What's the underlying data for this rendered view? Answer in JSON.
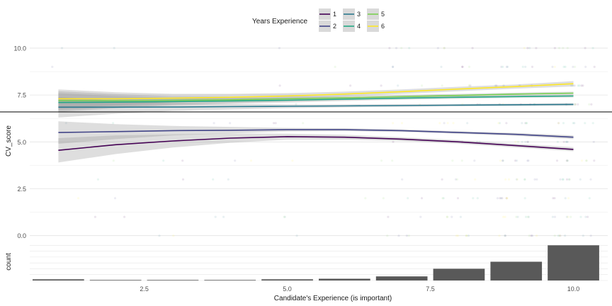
{
  "chart_data": [
    {
      "type": "line",
      "subtype": "scatter-with-smooth-lines",
      "xlabel": "",
      "ylabel": "CV_score",
      "xlim": [
        0.5,
        10.6
      ],
      "ylim": [
        -0.2,
        10.3
      ],
      "y_ticks": [
        0.0,
        2.5,
        5.0,
        7.5,
        10.0
      ],
      "y_tick_labels": [
        "0.0",
        "2.5",
        "5.0",
        "7.5",
        "10.0"
      ],
      "grid": true,
      "legend": {
        "title": "Years Experience",
        "placement": "top",
        "entries": [
          "1",
          "2",
          "3",
          "4",
          "5",
          "6"
        ]
      },
      "reference_line_y": 6.6,
      "series": [
        {
          "name": "1",
          "color": "#440154",
          "x": [
            1,
            2,
            3,
            4,
            5,
            6,
            7,
            8,
            9,
            10
          ],
          "y": [
            4.55,
            4.85,
            5.05,
            5.2,
            5.28,
            5.25,
            5.15,
            5.0,
            4.8,
            4.6
          ],
          "band": [
            [
              3.9,
              5.2
            ],
            [
              4.35,
              5.35
            ],
            [
              4.7,
              5.4
            ],
            [
              4.95,
              5.45
            ],
            [
              5.12,
              5.44
            ],
            [
              5.12,
              5.38
            ],
            [
              5.05,
              5.25
            ],
            [
              4.9,
              5.1
            ],
            [
              4.7,
              4.9
            ],
            [
              4.5,
              4.72
            ]
          ]
        },
        {
          "name": "2",
          "color": "#414487",
          "x": [
            1,
            2,
            3,
            4,
            5,
            6,
            7,
            8,
            9,
            10
          ],
          "y": [
            5.5,
            5.55,
            5.6,
            5.62,
            5.65,
            5.65,
            5.6,
            5.5,
            5.4,
            5.25
          ],
          "band": [
            [
              4.9,
              6.1
            ],
            [
              5.15,
              5.95
            ],
            [
              5.35,
              5.85
            ],
            [
              5.45,
              5.8
            ],
            [
              5.55,
              5.75
            ],
            [
              5.57,
              5.73
            ],
            [
              5.53,
              5.67
            ],
            [
              5.43,
              5.57
            ],
            [
              5.32,
              5.48
            ],
            [
              5.15,
              5.35
            ]
          ]
        },
        {
          "name": "3",
          "color": "#2A788E",
          "x": [
            1,
            2,
            3,
            4,
            5,
            6,
            7,
            8,
            9,
            10
          ],
          "y": [
            6.85,
            6.85,
            6.86,
            6.88,
            6.9,
            6.92,
            6.94,
            6.96,
            6.98,
            7.0
          ],
          "band": [
            [
              6.3,
              7.4
            ],
            [
              6.5,
              7.2
            ],
            [
              6.65,
              7.07
            ],
            [
              6.73,
              7.03
            ],
            [
              6.8,
              7.0
            ],
            [
              6.84,
              7.0
            ],
            [
              6.87,
              7.01
            ],
            [
              6.9,
              7.02
            ],
            [
              6.92,
              7.04
            ],
            [
              6.93,
              7.07
            ]
          ]
        },
        {
          "name": "4",
          "color": "#22A884",
          "x": [
            1,
            2,
            3,
            4,
            5,
            6,
            7,
            8,
            9,
            10
          ],
          "y": [
            7.1,
            7.12,
            7.15,
            7.18,
            7.22,
            7.28,
            7.33,
            7.38,
            7.42,
            7.45
          ],
          "band": [
            [
              6.6,
              7.6
            ],
            [
              6.8,
              7.45
            ],
            [
              6.95,
              7.35
            ],
            [
              7.03,
              7.33
            ],
            [
              7.1,
              7.34
            ],
            [
              7.18,
              7.38
            ],
            [
              7.25,
              7.41
            ],
            [
              7.3,
              7.46
            ],
            [
              7.35,
              7.49
            ],
            [
              7.37,
              7.53
            ]
          ]
        },
        {
          "name": "5",
          "color": "#7AD151",
          "x": [
            1,
            2,
            3,
            4,
            5,
            6,
            7,
            8,
            9,
            10
          ],
          "y": [
            7.2,
            7.2,
            7.22,
            7.25,
            7.3,
            7.35,
            7.42,
            7.48,
            7.55,
            7.6
          ],
          "band": [
            [
              6.7,
              7.7
            ],
            [
              6.85,
              7.55
            ],
            [
              7.0,
              7.44
            ],
            [
              7.08,
              7.42
            ],
            [
              7.16,
              7.44
            ],
            [
              7.24,
              7.46
            ],
            [
              7.33,
              7.51
            ],
            [
              7.4,
              7.56
            ],
            [
              7.47,
              7.63
            ],
            [
              7.52,
              7.68
            ]
          ]
        },
        {
          "name": "6",
          "color": "#FDE725",
          "x": [
            1,
            2,
            3,
            4,
            5,
            6,
            7,
            8,
            9,
            10
          ],
          "y": [
            7.3,
            7.3,
            7.33,
            7.38,
            7.45,
            7.55,
            7.68,
            7.82,
            7.95,
            8.1
          ],
          "band": [
            [
              6.8,
              7.8
            ],
            [
              6.95,
              7.65
            ],
            [
              7.1,
              7.56
            ],
            [
              7.2,
              7.56
            ],
            [
              7.3,
              7.6
            ],
            [
              7.42,
              7.68
            ],
            [
              7.56,
              7.8
            ],
            [
              7.7,
              7.94
            ],
            [
              7.84,
              8.06
            ],
            [
              7.96,
              8.24
            ]
          ]
        }
      ]
    },
    {
      "type": "bar",
      "xlabel": "Candidate's Experience (is important)",
      "ylabel": "count",
      "x_ticks": [
        2.5,
        5.0,
        7.5,
        10.0
      ],
      "x_tick_labels": [
        "2.5",
        "5.0",
        "7.5",
        "10.0"
      ],
      "categories": [
        1,
        2,
        3,
        4,
        5,
        6,
        7,
        8,
        9,
        10
      ],
      "values": [
        2,
        1,
        1,
        1,
        2,
        3,
        7,
        20,
        32,
        60
      ],
      "ylim": [
        0,
        64
      ],
      "color": "#595959"
    }
  ]
}
